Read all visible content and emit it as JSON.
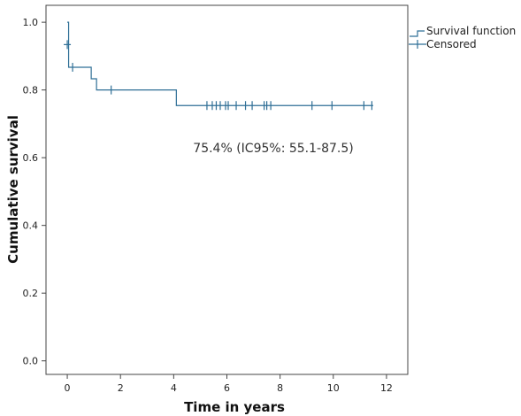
{
  "chart_data": {
    "type": "line",
    "xlabel": "Time in years",
    "ylabel": "Cumulative survival",
    "xlim": [
      -0.8,
      12.8
    ],
    "ylim": [
      -0.04,
      1.05
    ],
    "x_ticks": [
      0,
      2,
      4,
      6,
      8,
      10,
      12
    ],
    "x_tick_labels": [
      "0",
      "2",
      "4",
      "6",
      "8",
      "10",
      "12"
    ],
    "y_ticks": [
      0.0,
      0.2,
      0.4,
      0.6,
      0.8,
      1.0
    ],
    "y_tick_labels": [
      "0.0",
      "0.2",
      "0.4",
      "0.6",
      "0.8",
      "1.0"
    ],
    "grid": false,
    "line_color": "#2f6f96",
    "series": [
      {
        "name": "Survival function",
        "kind": "step",
        "x": [
          0,
          0.05,
          0.9,
          1.1,
          4.1,
          11.5
        ],
        "y": [
          1.0,
          0.867,
          0.833,
          0.8,
          0.754,
          0.754
        ]
      },
      {
        "name": "Censored",
        "kind": "censor-marks",
        "x": [
          0.0,
          0.2,
          1.65,
          5.25,
          5.45,
          5.6,
          5.75,
          5.95,
          6.05,
          6.35,
          6.7,
          6.95,
          7.4,
          7.5,
          7.65,
          9.2,
          9.95,
          11.15,
          11.45
        ],
        "y": [
          0.934,
          0.867,
          0.8,
          0.754,
          0.754,
          0.754,
          0.754,
          0.754,
          0.754,
          0.754,
          0.754,
          0.754,
          0.754,
          0.754,
          0.754,
          0.754,
          0.754,
          0.754,
          0.754
        ]
      }
    ],
    "annotation": "75.4% (IC95%: 55.1-87.5)",
    "legend": {
      "placement": "right-top",
      "entries": [
        "Survival function",
        "Censored"
      ]
    }
  }
}
